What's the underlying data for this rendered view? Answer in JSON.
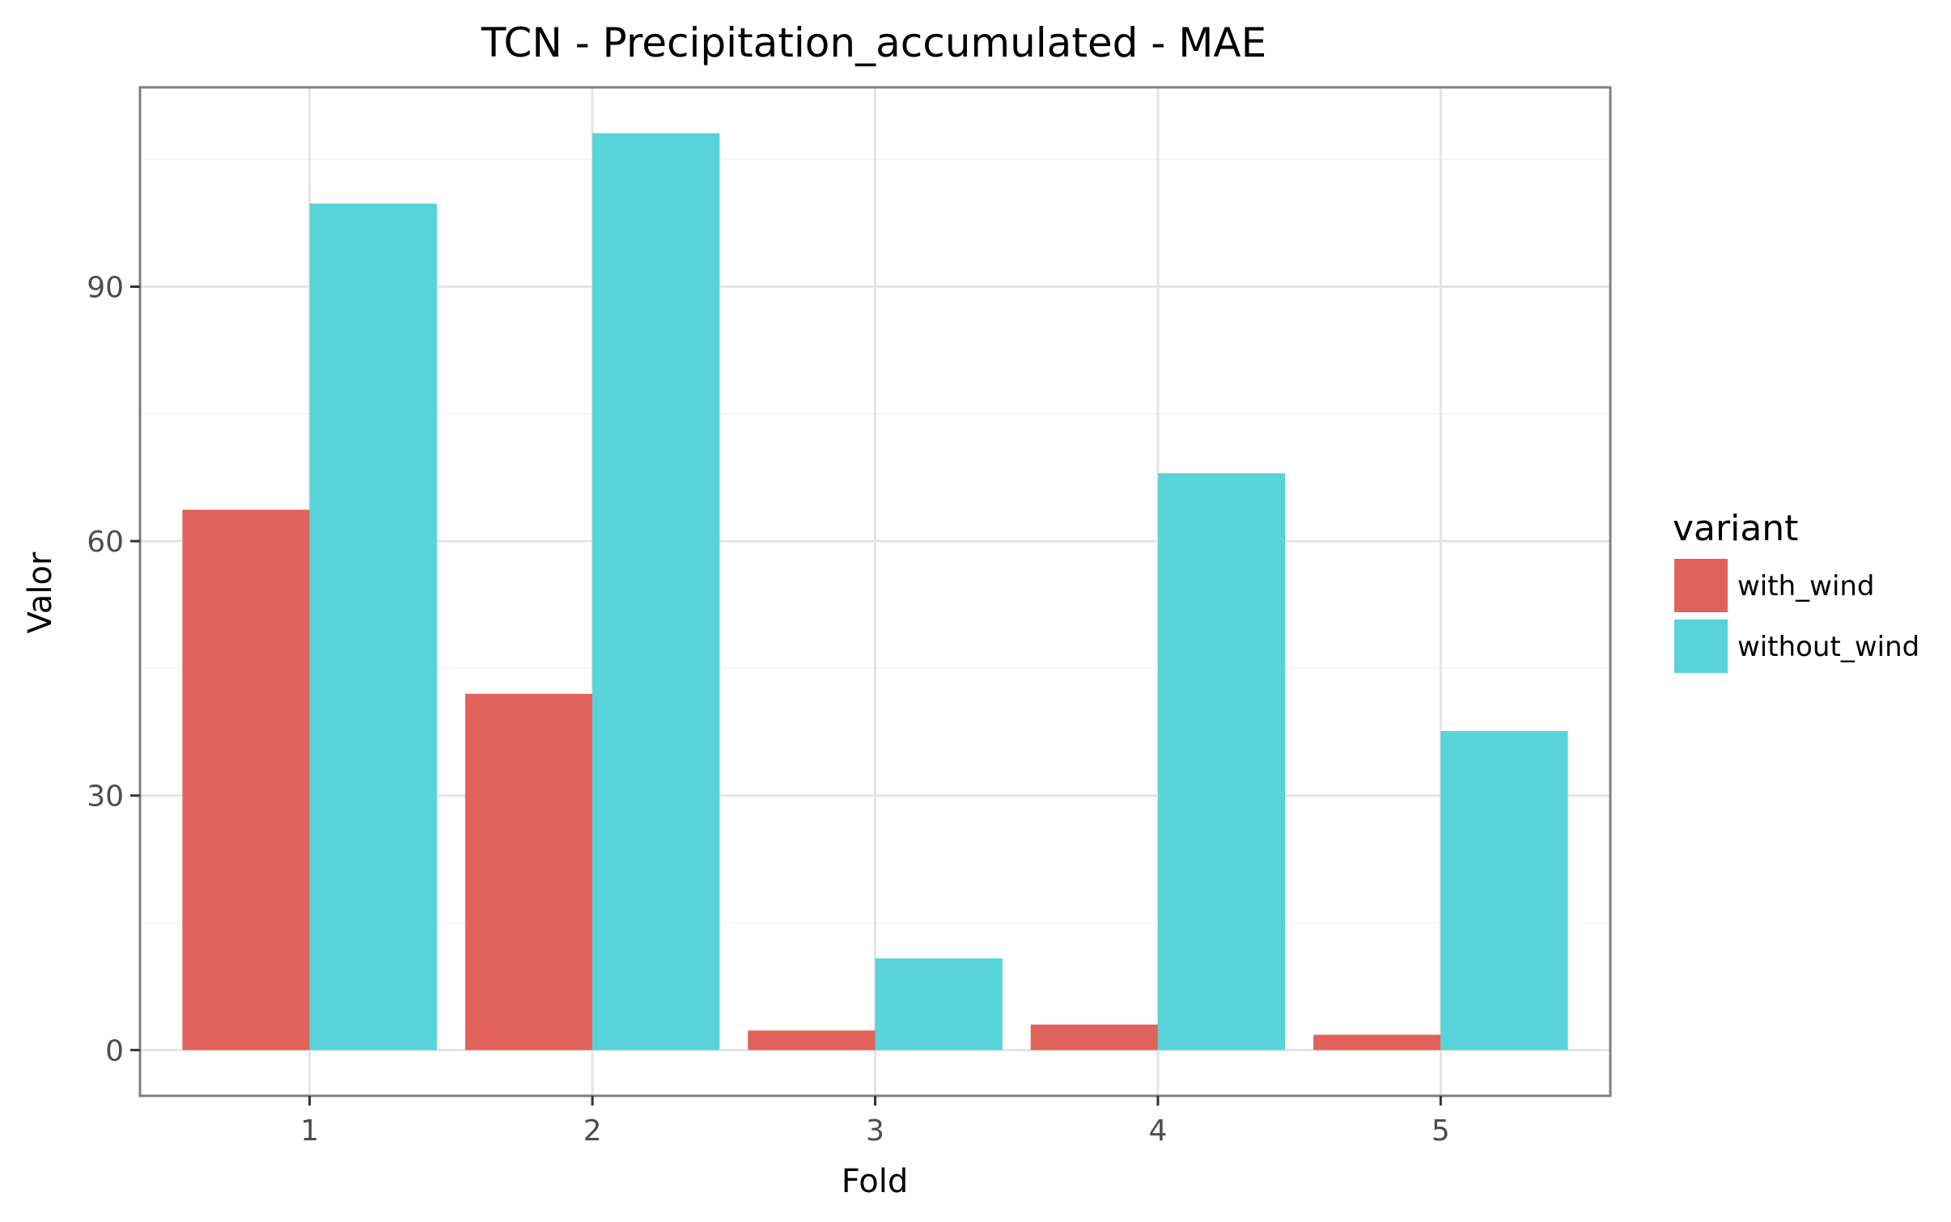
{
  "chart_data": {
    "type": "bar",
    "title": "TCN - Precipitation_accumulated - MAE",
    "xlabel": "Fold",
    "ylabel": "Valor",
    "categories": [
      "1",
      "2",
      "3",
      "4",
      "5"
    ],
    "series": [
      {
        "name": "with_wind",
        "color": "#E0625B",
        "values": [
          63.7,
          42.0,
          2.3,
          3.0,
          1.8
        ]
      },
      {
        "name": "without_wind",
        "color": "#58D3DA",
        "values": [
          99.8,
          108.1,
          10.8,
          68.0,
          37.6
        ]
      }
    ],
    "ylim": [
      -5.4,
      113.5
    ],
    "yticks": [
      0,
      30,
      60,
      90
    ],
    "yticklabels": [
      "0",
      "30",
      "60",
      "90"
    ],
    "grid": true,
    "legend": {
      "title": "variant",
      "position": "right"
    }
  }
}
